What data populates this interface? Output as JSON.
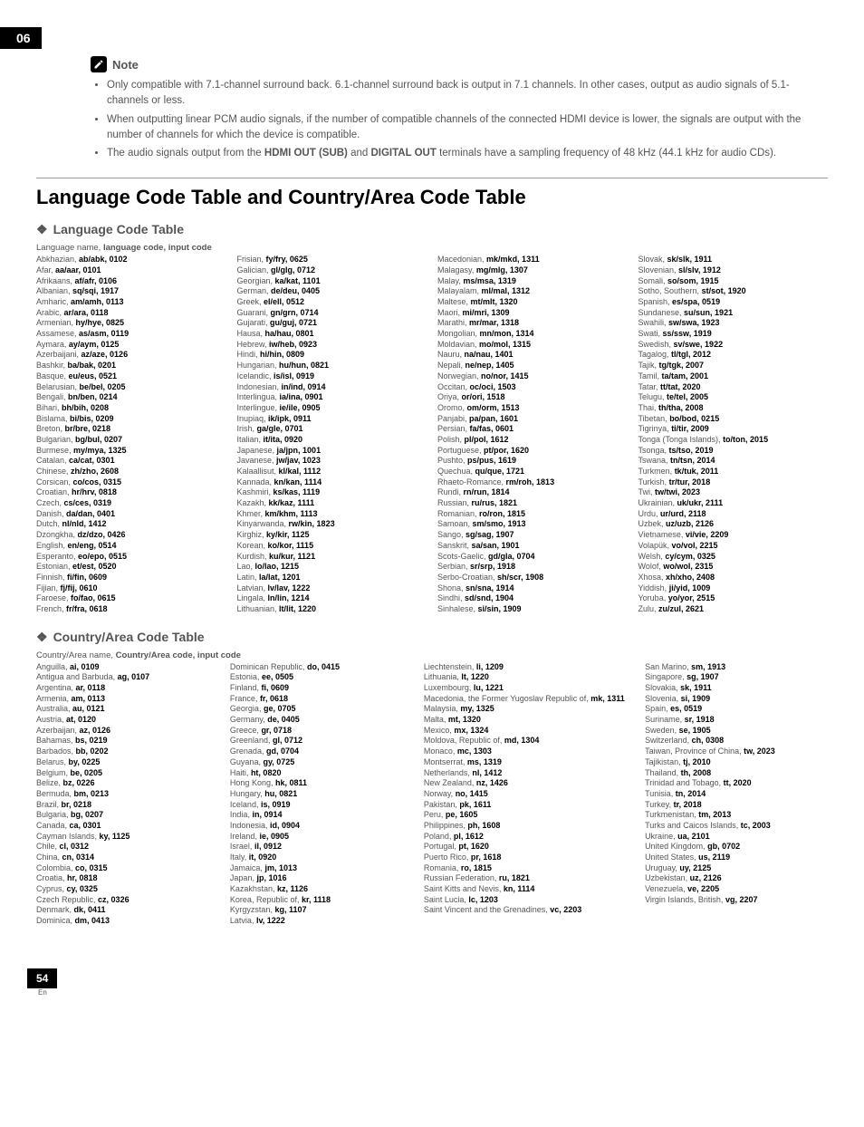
{
  "chapter": "06",
  "note_label": "Note",
  "notes": [
    "Only compatible with 7.1-channel surround back. 6.1-channel surround back is output in 7.1 channels. In other cases, output as audio signals of 5.1-channels or less.",
    "When outputting linear PCM audio signals, if the number of compatible channels of the connected HDMI device is lower, the signals are output with the number of channels for which the device is compatible.",
    "The audio signals output from the <b>HDMI OUT (SUB)</b> and <b>DIGITAL OUT</b> terminals have a sampling frequency of 48 kHz (44.1 kHz for audio CDs)."
  ],
  "main_heading": "Language Code Table and Country/Area Code Table",
  "lang_heading": "Language Code Table",
  "lang_header": "Language name, <b>language code, input code</b>",
  "lang_cols": [
    [
      [
        "Abkhazian",
        "ab/abk, 0102"
      ],
      [
        "Afar",
        "aa/aar, 0101"
      ],
      [
        "Afrikaans",
        "af/afr, 0106"
      ],
      [
        "Albanian",
        "sq/sqi, 1917"
      ],
      [
        "Amharic",
        "am/amh, 0113"
      ],
      [
        "Arabic",
        "ar/ara, 0118"
      ],
      [
        "Armenian",
        "hy/hye, 0825"
      ],
      [
        "Assamese",
        "as/asm, 0119"
      ],
      [
        "Aymara",
        "ay/aym, 0125"
      ],
      [
        "Azerbaijani",
        "az/aze, 0126"
      ],
      [
        "Bashkir",
        "ba/bak, 0201"
      ],
      [
        "Basque",
        "eu/eus, 0521"
      ],
      [
        "Belarusian",
        "be/bel, 0205"
      ],
      [
        "Bengali",
        "bn/ben, 0214"
      ],
      [
        "Bihari",
        "bh/bih, 0208"
      ],
      [
        "Bislama",
        "bi/bis, 0209"
      ],
      [
        "Breton",
        "br/bre, 0218"
      ],
      [
        "Bulgarian",
        "bg/bul, 0207"
      ],
      [
        "Burmese",
        "my/mya, 1325"
      ],
      [
        "Catalan",
        "ca/cat, 0301"
      ],
      [
        "Chinese",
        "zh/zho, 2608"
      ],
      [
        "Corsican",
        "co/cos, 0315"
      ],
      [
        "Croatian",
        "hr/hrv, 0818"
      ],
      [
        "Czech",
        "cs/ces, 0319"
      ],
      [
        "Danish",
        "da/dan, 0401"
      ],
      [
        "Dutch",
        "nl/nld, 1412"
      ],
      [
        "Dzongkha",
        "dz/dzo, 0426"
      ],
      [
        "English",
        "en/eng, 0514"
      ],
      [
        "Esperanto",
        "eo/epo, 0515"
      ],
      [
        "Estonian",
        "et/est, 0520"
      ],
      [
        "Finnish",
        "fi/fin, 0609"
      ],
      [
        "Fijian",
        "fj/fij, 0610"
      ],
      [
        "Faroese",
        "fo/fao, 0615"
      ],
      [
        "French",
        "fr/fra, 0618"
      ]
    ],
    [
      [
        "Frisian",
        "fy/fry, 0625"
      ],
      [
        "Galician",
        "gl/glg, 0712"
      ],
      [
        "Georgian",
        "ka/kat, 1101"
      ],
      [
        "German",
        "de/deu, 0405"
      ],
      [
        "Greek",
        "el/ell, 0512"
      ],
      [
        "Guarani",
        "gn/grn, 0714"
      ],
      [
        "Gujarati",
        "gu/guj, 0721"
      ],
      [
        "Hausa",
        "ha/hau, 0801"
      ],
      [
        "Hebrew",
        "iw/heb, 0923"
      ],
      [
        "Hindi",
        "hi/hin, 0809"
      ],
      [
        "Hungarian",
        "hu/hun, 0821"
      ],
      [
        "Icelandic",
        "is/isl, 0919"
      ],
      [
        "Indonesian",
        "in/ind, 0914"
      ],
      [
        "Interlingua",
        "ia/ina, 0901"
      ],
      [
        "Interlingue",
        "ie/ile, 0905"
      ],
      [
        "Inupiaq",
        "ik/ipk, 0911"
      ],
      [
        "Irish",
        "ga/gle, 0701"
      ],
      [
        "Italian",
        "it/ita, 0920"
      ],
      [
        "Japanese",
        "ja/jpn, 1001"
      ],
      [
        "Javanese",
        "jw/jav, 1023"
      ],
      [
        "Kalaallisut",
        "kl/kal, 1112"
      ],
      [
        "Kannada",
        "kn/kan, 1114"
      ],
      [
        "Kashmiri",
        "ks/kas, 1119"
      ],
      [
        "Kazakh",
        "kk/kaz, 1111"
      ],
      [
        "Khmer",
        "km/khm, 1113"
      ],
      [
        "Kinyarwanda",
        "rw/kin, 1823"
      ],
      [
        "Kirghiz",
        "ky/kir, 1125"
      ],
      [
        "Korean",
        "ko/kor, 1115"
      ],
      [
        "Kurdish",
        "ku/kur, 1121"
      ],
      [
        "Lao",
        "lo/lao, 1215"
      ],
      [
        "Latin",
        "la/lat, 1201"
      ],
      [
        "Latvian",
        "lv/lav, 1222"
      ],
      [
        "Lingala",
        "ln/lin, 1214"
      ],
      [
        "Lithuanian",
        "lt/lit, 1220"
      ]
    ],
    [
      [
        "Macedonian",
        "mk/mkd, 1311"
      ],
      [
        "Malagasy",
        "mg/mlg, 1307"
      ],
      [
        "Malay",
        "ms/msa, 1319"
      ],
      [
        "Malayalam",
        "ml/mal, 1312"
      ],
      [
        "Maltese",
        "mt/mlt, 1320"
      ],
      [
        "Maori",
        "mi/mri, 1309"
      ],
      [
        "Marathi",
        "mr/mar, 1318"
      ],
      [
        "Mongolian",
        "mn/mon, 1314"
      ],
      [
        "Moldavian",
        "mo/mol, 1315"
      ],
      [
        "Nauru",
        "na/nau, 1401"
      ],
      [
        "Nepali",
        "ne/nep, 1405"
      ],
      [
        "Norwegian",
        "no/nor, 1415"
      ],
      [
        "Occitan",
        "oc/oci, 1503"
      ],
      [
        "Oriya",
        "or/ori, 1518"
      ],
      [
        "Oromo",
        "om/orm, 1513"
      ],
      [
        "Panjabi",
        "pa/pan, 1601"
      ],
      [
        "Persian",
        "fa/fas, 0601"
      ],
      [
        "Polish",
        "pl/pol, 1612"
      ],
      [
        "Portuguese",
        "pt/por, 1620"
      ],
      [
        "Pushto",
        "ps/pus, 1619"
      ],
      [
        "Quechua",
        "qu/que, 1721"
      ],
      [
        "Rhaeto-Romance",
        "rm/roh, 1813"
      ],
      [
        "Rundi",
        "rn/run, 1814"
      ],
      [
        "Russian",
        "ru/rus, 1821"
      ],
      [
        "Romanian",
        "ro/ron, 1815"
      ],
      [
        "Samoan",
        "sm/smo, 1913"
      ],
      [
        "Sango",
        "sg/sag, 1907"
      ],
      [
        "Sanskrit",
        "sa/san, 1901"
      ],
      [
        "Scots-Gaelic",
        "gd/gla, 0704"
      ],
      [
        "Serbian",
        "sr/srp, 1918"
      ],
      [
        "Serbo-Croatian",
        "sh/scr, 1908"
      ],
      [
        "Shona",
        "sn/sna, 1914"
      ],
      [
        "Sindhi",
        "sd/snd, 1904"
      ],
      [
        "Sinhalese",
        "si/sin, 1909"
      ]
    ],
    [
      [
        "Slovak",
        "sk/slk, 1911"
      ],
      [
        "Slovenian",
        "sl/slv, 1912"
      ],
      [
        "Somali",
        "so/som, 1915"
      ],
      [
        "Sotho, Southern",
        "st/sot, 1920"
      ],
      [
        "Spanish",
        "es/spa, 0519"
      ],
      [
        "Sundanese",
        "su/sun, 1921"
      ],
      [
        "Swahili",
        "sw/swa, 1923"
      ],
      [
        "Swati",
        "ss/ssw, 1919"
      ],
      [
        "Swedish",
        "sv/swe, 1922"
      ],
      [
        "Tagalog",
        "tl/tgl, 2012"
      ],
      [
        "Tajik",
        "tg/tgk, 2007"
      ],
      [
        "Tamil",
        "ta/tam, 2001"
      ],
      [
        "Tatar",
        "tt/tat, 2020"
      ],
      [
        "Telugu",
        "te/tel, 2005"
      ],
      [
        "Thai",
        "th/tha, 2008"
      ],
      [
        "Tibetan",
        "bo/bod, 0215"
      ],
      [
        "Tigrinya",
        "ti/tir, 2009"
      ],
      [
        "Tonga (Tonga Islands)",
        "to/ton, 2015"
      ],
      [
        "Tsonga",
        "ts/tso, 2019"
      ],
      [
        "Tswana",
        "tn/tsn, 2014"
      ],
      [
        "Turkmen",
        "tk/tuk, 2011"
      ],
      [
        "Turkish",
        "tr/tur, 2018"
      ],
      [
        "Twi",
        "tw/twi, 2023"
      ],
      [
        "Ukrainian",
        "uk/ukr, 2111"
      ],
      [
        "Urdu",
        "ur/urd, 2118"
      ],
      [
        "Uzbek",
        "uz/uzb, 2126"
      ],
      [
        "Vietnamese",
        "vi/vie, 2209"
      ],
      [
        "Volapük",
        "vo/vol, 2215"
      ],
      [
        "Welsh",
        "cy/cym, 0325"
      ],
      [
        "Wolof",
        "wo/wol, 2315"
      ],
      [
        "Xhosa",
        "xh/xho, 2408"
      ],
      [
        "Yiddish",
        "ji/yid, 1009"
      ],
      [
        "Yoruba",
        "yo/yor, 2515"
      ],
      [
        "Zulu",
        "zu/zul, 2621"
      ]
    ]
  ],
  "country_heading": "Country/Area Code Table",
  "country_header": "Country/Area name, <b>Country/Area code, input code</b>",
  "country_cols": [
    [
      [
        "Anguilla",
        "ai, 0109"
      ],
      [
        "Antigua and Barbuda",
        "ag, 0107"
      ],
      [
        "Argentina",
        "ar, 0118"
      ],
      [
        "Armenia",
        "am, 0113"
      ],
      [
        "Australia",
        "au, 0121"
      ],
      [
        "Austria",
        "at, 0120"
      ],
      [
        "Azerbaijan",
        "az, 0126"
      ],
      [
        "Bahamas",
        "bs, 0219"
      ],
      [
        "Barbados",
        "bb, 0202"
      ],
      [
        "Belarus",
        "by, 0225"
      ],
      [
        "Belgium",
        "be, 0205"
      ],
      [
        "Belize",
        "bz, 0226"
      ],
      [
        "Bermuda",
        "bm, 0213"
      ],
      [
        "Brazil",
        "br, 0218"
      ],
      [
        "Bulgaria",
        "bg, 0207"
      ],
      [
        "Canada",
        "ca, 0301"
      ],
      [
        "Cayman Islands",
        "ky, 1125"
      ],
      [
        "Chile",
        "cl, 0312"
      ],
      [
        "China",
        "cn, 0314"
      ],
      [
        "Colombia",
        "co, 0315"
      ],
      [
        "Croatia",
        "hr, 0818"
      ],
      [
        "Cyprus",
        "cy, 0325"
      ],
      [
        "Czech Republic",
        "cz, 0326"
      ],
      [
        "Denmark",
        "dk, 0411"
      ],
      [
        "Dominica",
        "dm, 0413"
      ]
    ],
    [
      [
        "Dominican Republic",
        "do, 0415"
      ],
      [
        "Estonia",
        "ee, 0505"
      ],
      [
        "Finland",
        "fi, 0609"
      ],
      [
        "France",
        "fr, 0618"
      ],
      [
        "Georgia",
        "ge, 0705"
      ],
      [
        "Germany",
        "de, 0405"
      ],
      [
        "Greece",
        "gr, 0718"
      ],
      [
        "Greenland",
        "gl, 0712"
      ],
      [
        "Grenada",
        "gd, 0704"
      ],
      [
        "Guyana",
        "gy, 0725"
      ],
      [
        "Haiti",
        "ht, 0820"
      ],
      [
        "Hong Kong",
        "hk, 0811"
      ],
      [
        "Hungary",
        "hu, 0821"
      ],
      [
        "Iceland",
        "is, 0919"
      ],
      [
        "India",
        "in, 0914"
      ],
      [
        "Indonesia",
        "id, 0904"
      ],
      [
        "Ireland",
        "ie, 0905"
      ],
      [
        "Israel",
        "il, 0912"
      ],
      [
        "Italy",
        "it, 0920"
      ],
      [
        "Jamaica",
        "jm, 1013"
      ],
      [
        "Japan",
        "jp, 1016"
      ],
      [
        "Kazakhstan",
        "kz, 1126"
      ],
      [
        "Korea, Republic of",
        "kr, 1118"
      ],
      [
        "Kyrgyzstan",
        "kg, 1107"
      ],
      [
        "Latvia",
        "lv, 1222"
      ]
    ],
    [
      [
        "Liechtenstein",
        "li, 1209"
      ],
      [
        "Lithuania",
        "lt, 1220"
      ],
      [
        "Luxembourg",
        "lu, 1221"
      ],
      [
        "Macedonia, the Former Yugoslav Republic of",
        "mk, 1311"
      ],
      [
        "Malaysia",
        "my, 1325"
      ],
      [
        "Malta",
        "mt, 1320"
      ],
      [
        "Mexico",
        "mx, 1324"
      ],
      [
        "Moldova, Republic of",
        "md, 1304"
      ],
      [
        "Monaco",
        "mc, 1303"
      ],
      [
        "Montserrat",
        "ms, 1319"
      ],
      [
        "Netherlands",
        "nl, 1412"
      ],
      [
        "New Zealand",
        "nz, 1426"
      ],
      [
        "Norway",
        "no, 1415"
      ],
      [
        "Pakistan",
        "pk, 1611"
      ],
      [
        "Peru",
        "pe, 1605"
      ],
      [
        "Philippines",
        "ph, 1608"
      ],
      [
        "Poland",
        "pl, 1612"
      ],
      [
        "Portugal",
        "pt, 1620"
      ],
      [
        "Puerto Rico",
        "pr, 1618"
      ],
      [
        "Romania",
        "ro, 1815"
      ],
      [
        "Russian Federation",
        "ru, 1821"
      ],
      [
        "Saint Kitts and Nevis",
        "kn, 1114"
      ],
      [
        "Saint Lucia",
        "lc, 1203"
      ],
      [
        "Saint Vincent and the Grenadines",
        "vc, 2203"
      ]
    ],
    [
      [
        "San Marino",
        "sm, 1913"
      ],
      [
        "Singapore",
        "sg, 1907"
      ],
      [
        "Slovakia",
        "sk, 1911"
      ],
      [
        "Slovenia",
        "si, 1909"
      ],
      [
        "Spain",
        "es, 0519"
      ],
      [
        "Suriname",
        "sr, 1918"
      ],
      [
        "Sweden",
        "se, 1905"
      ],
      [
        "Switzerland",
        "ch, 0308"
      ],
      [
        "Taiwan, Province of China",
        "tw, 2023"
      ],
      [
        "Tajikistan",
        "tj, 2010"
      ],
      [
        "Thailand",
        "th, 2008"
      ],
      [
        "Trinidad and Tobago",
        "tt, 2020"
      ],
      [
        "Tunisia",
        "tn, 2014"
      ],
      [
        "Turkey",
        "tr, 2018"
      ],
      [
        "Turkmenistan",
        "tm, 2013"
      ],
      [
        "Turks and Caicos Islands",
        "tc, 2003"
      ],
      [
        "Ukraine",
        "ua, 2101"
      ],
      [
        "United Kingdom",
        "gb, 0702"
      ],
      [
        "United States",
        "us, 2119"
      ],
      [
        "Uruguay",
        "uy, 2125"
      ],
      [
        "Uzbekistan",
        "uz, 2126"
      ],
      [
        "Venezuela",
        "ve, 2205"
      ],
      [
        "Virgin Islands, British",
        "vg, 2207"
      ]
    ]
  ],
  "page_number": "54",
  "page_lang": "En"
}
